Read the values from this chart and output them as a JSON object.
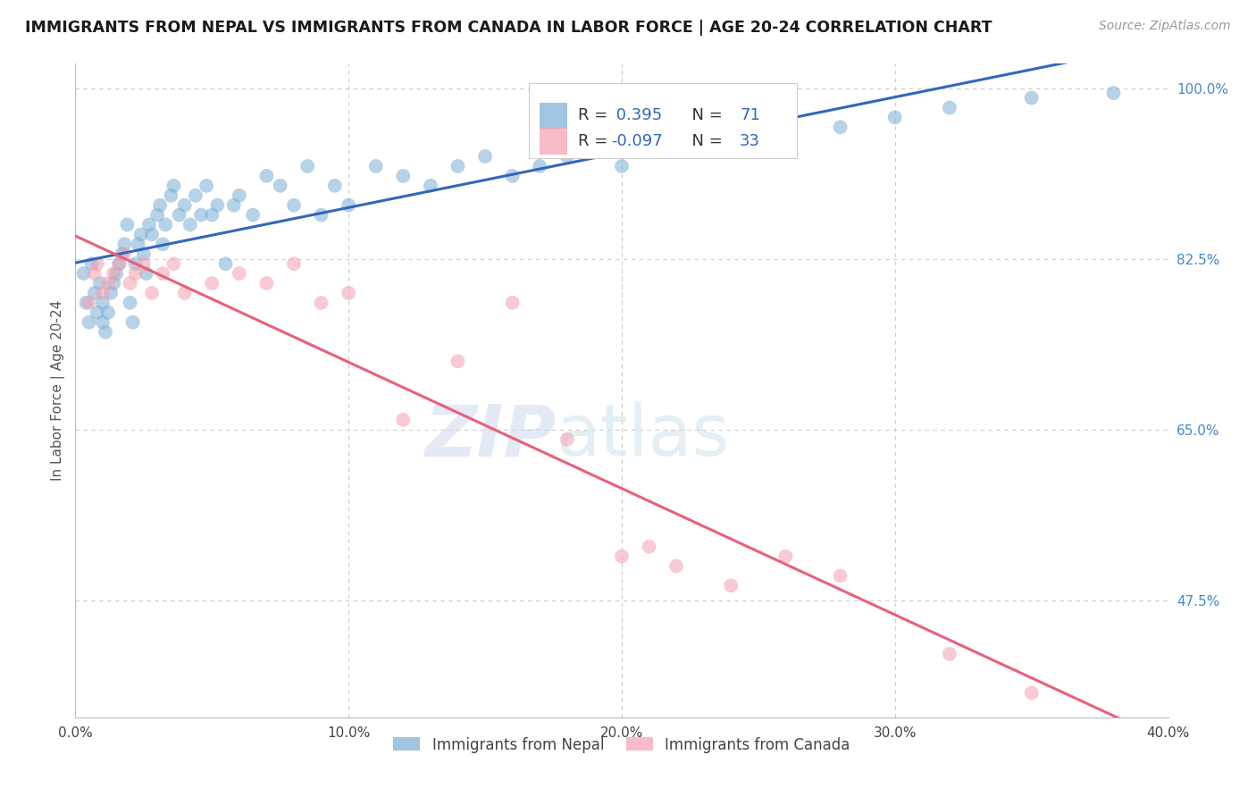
{
  "title": "IMMIGRANTS FROM NEPAL VS IMMIGRANTS FROM CANADA IN LABOR FORCE | AGE 20-24 CORRELATION CHART",
  "source": "Source: ZipAtlas.com",
  "ylabel": "In Labor Force | Age 20-24",
  "xlim": [
    0.0,
    0.4
  ],
  "ylim": [
    0.355,
    1.025
  ],
  "xticks": [
    0.0,
    0.1,
    0.2,
    0.3,
    0.4
  ],
  "xtick_labels": [
    "0.0%",
    "10.0%",
    "20.0%",
    "30.0%",
    "40.0%"
  ],
  "yticks_right": [
    1.0,
    0.825,
    0.65,
    0.475
  ],
  "ytick_labels_right": [
    "100.0%",
    "82.5%",
    "65.0%",
    "47.5%"
  ],
  "nepal_color": "#7aadd4",
  "canada_color": "#f4a0b0",
  "nepal_line_color": "#3366bb",
  "canada_line_color": "#e8607a",
  "nepal_R": 0.395,
  "nepal_N": 71,
  "canada_R": -0.097,
  "canada_N": 33,
  "nepal_x": [
    0.003,
    0.004,
    0.005,
    0.006,
    0.007,
    0.008,
    0.009,
    0.01,
    0.01,
    0.011,
    0.012,
    0.013,
    0.014,
    0.015,
    0.016,
    0.017,
    0.018,
    0.019,
    0.02,
    0.021,
    0.022,
    0.023,
    0.024,
    0.025,
    0.026,
    0.027,
    0.028,
    0.03,
    0.031,
    0.032,
    0.033,
    0.035,
    0.036,
    0.038,
    0.04,
    0.042,
    0.044,
    0.046,
    0.048,
    0.05,
    0.052,
    0.055,
    0.058,
    0.06,
    0.065,
    0.07,
    0.075,
    0.08,
    0.085,
    0.09,
    0.095,
    0.1,
    0.11,
    0.12,
    0.13,
    0.14,
    0.15,
    0.16,
    0.17,
    0.18,
    0.19,
    0.2,
    0.21,
    0.22,
    0.24,
    0.26,
    0.28,
    0.3,
    0.32,
    0.35,
    0.38
  ],
  "nepal_y": [
    0.81,
    0.78,
    0.76,
    0.82,
    0.79,
    0.77,
    0.8,
    0.78,
    0.76,
    0.75,
    0.77,
    0.79,
    0.8,
    0.81,
    0.82,
    0.83,
    0.84,
    0.86,
    0.78,
    0.76,
    0.82,
    0.84,
    0.85,
    0.83,
    0.81,
    0.86,
    0.85,
    0.87,
    0.88,
    0.84,
    0.86,
    0.89,
    0.9,
    0.87,
    0.88,
    0.86,
    0.89,
    0.87,
    0.9,
    0.87,
    0.88,
    0.82,
    0.88,
    0.89,
    0.87,
    0.91,
    0.9,
    0.88,
    0.92,
    0.87,
    0.9,
    0.88,
    0.92,
    0.91,
    0.9,
    0.92,
    0.93,
    0.91,
    0.92,
    0.93,
    0.94,
    0.92,
    0.94,
    0.95,
    0.96,
    0.97,
    0.96,
    0.97,
    0.98,
    0.99,
    0.995
  ],
  "canada_x": [
    0.005,
    0.007,
    0.008,
    0.01,
    0.012,
    0.014,
    0.016,
    0.018,
    0.02,
    0.022,
    0.025,
    0.028,
    0.032,
    0.036,
    0.04,
    0.05,
    0.06,
    0.07,
    0.08,
    0.09,
    0.1,
    0.12,
    0.14,
    0.16,
    0.18,
    0.2,
    0.21,
    0.22,
    0.24,
    0.26,
    0.28,
    0.32,
    0.35
  ],
  "canada_y": [
    0.78,
    0.81,
    0.82,
    0.79,
    0.8,
    0.81,
    0.82,
    0.83,
    0.8,
    0.81,
    0.82,
    0.79,
    0.81,
    0.82,
    0.79,
    0.8,
    0.81,
    0.8,
    0.82,
    0.78,
    0.79,
    0.66,
    0.72,
    0.78,
    0.64,
    0.52,
    0.53,
    0.51,
    0.49,
    0.52,
    0.5,
    0.42,
    0.38
  ],
  "background_color": "#ffffff",
  "grid_color": "#cccccc",
  "legend_nepal_label": "Immigrants from Nepal",
  "legend_canada_label": "Immigrants from Canada"
}
